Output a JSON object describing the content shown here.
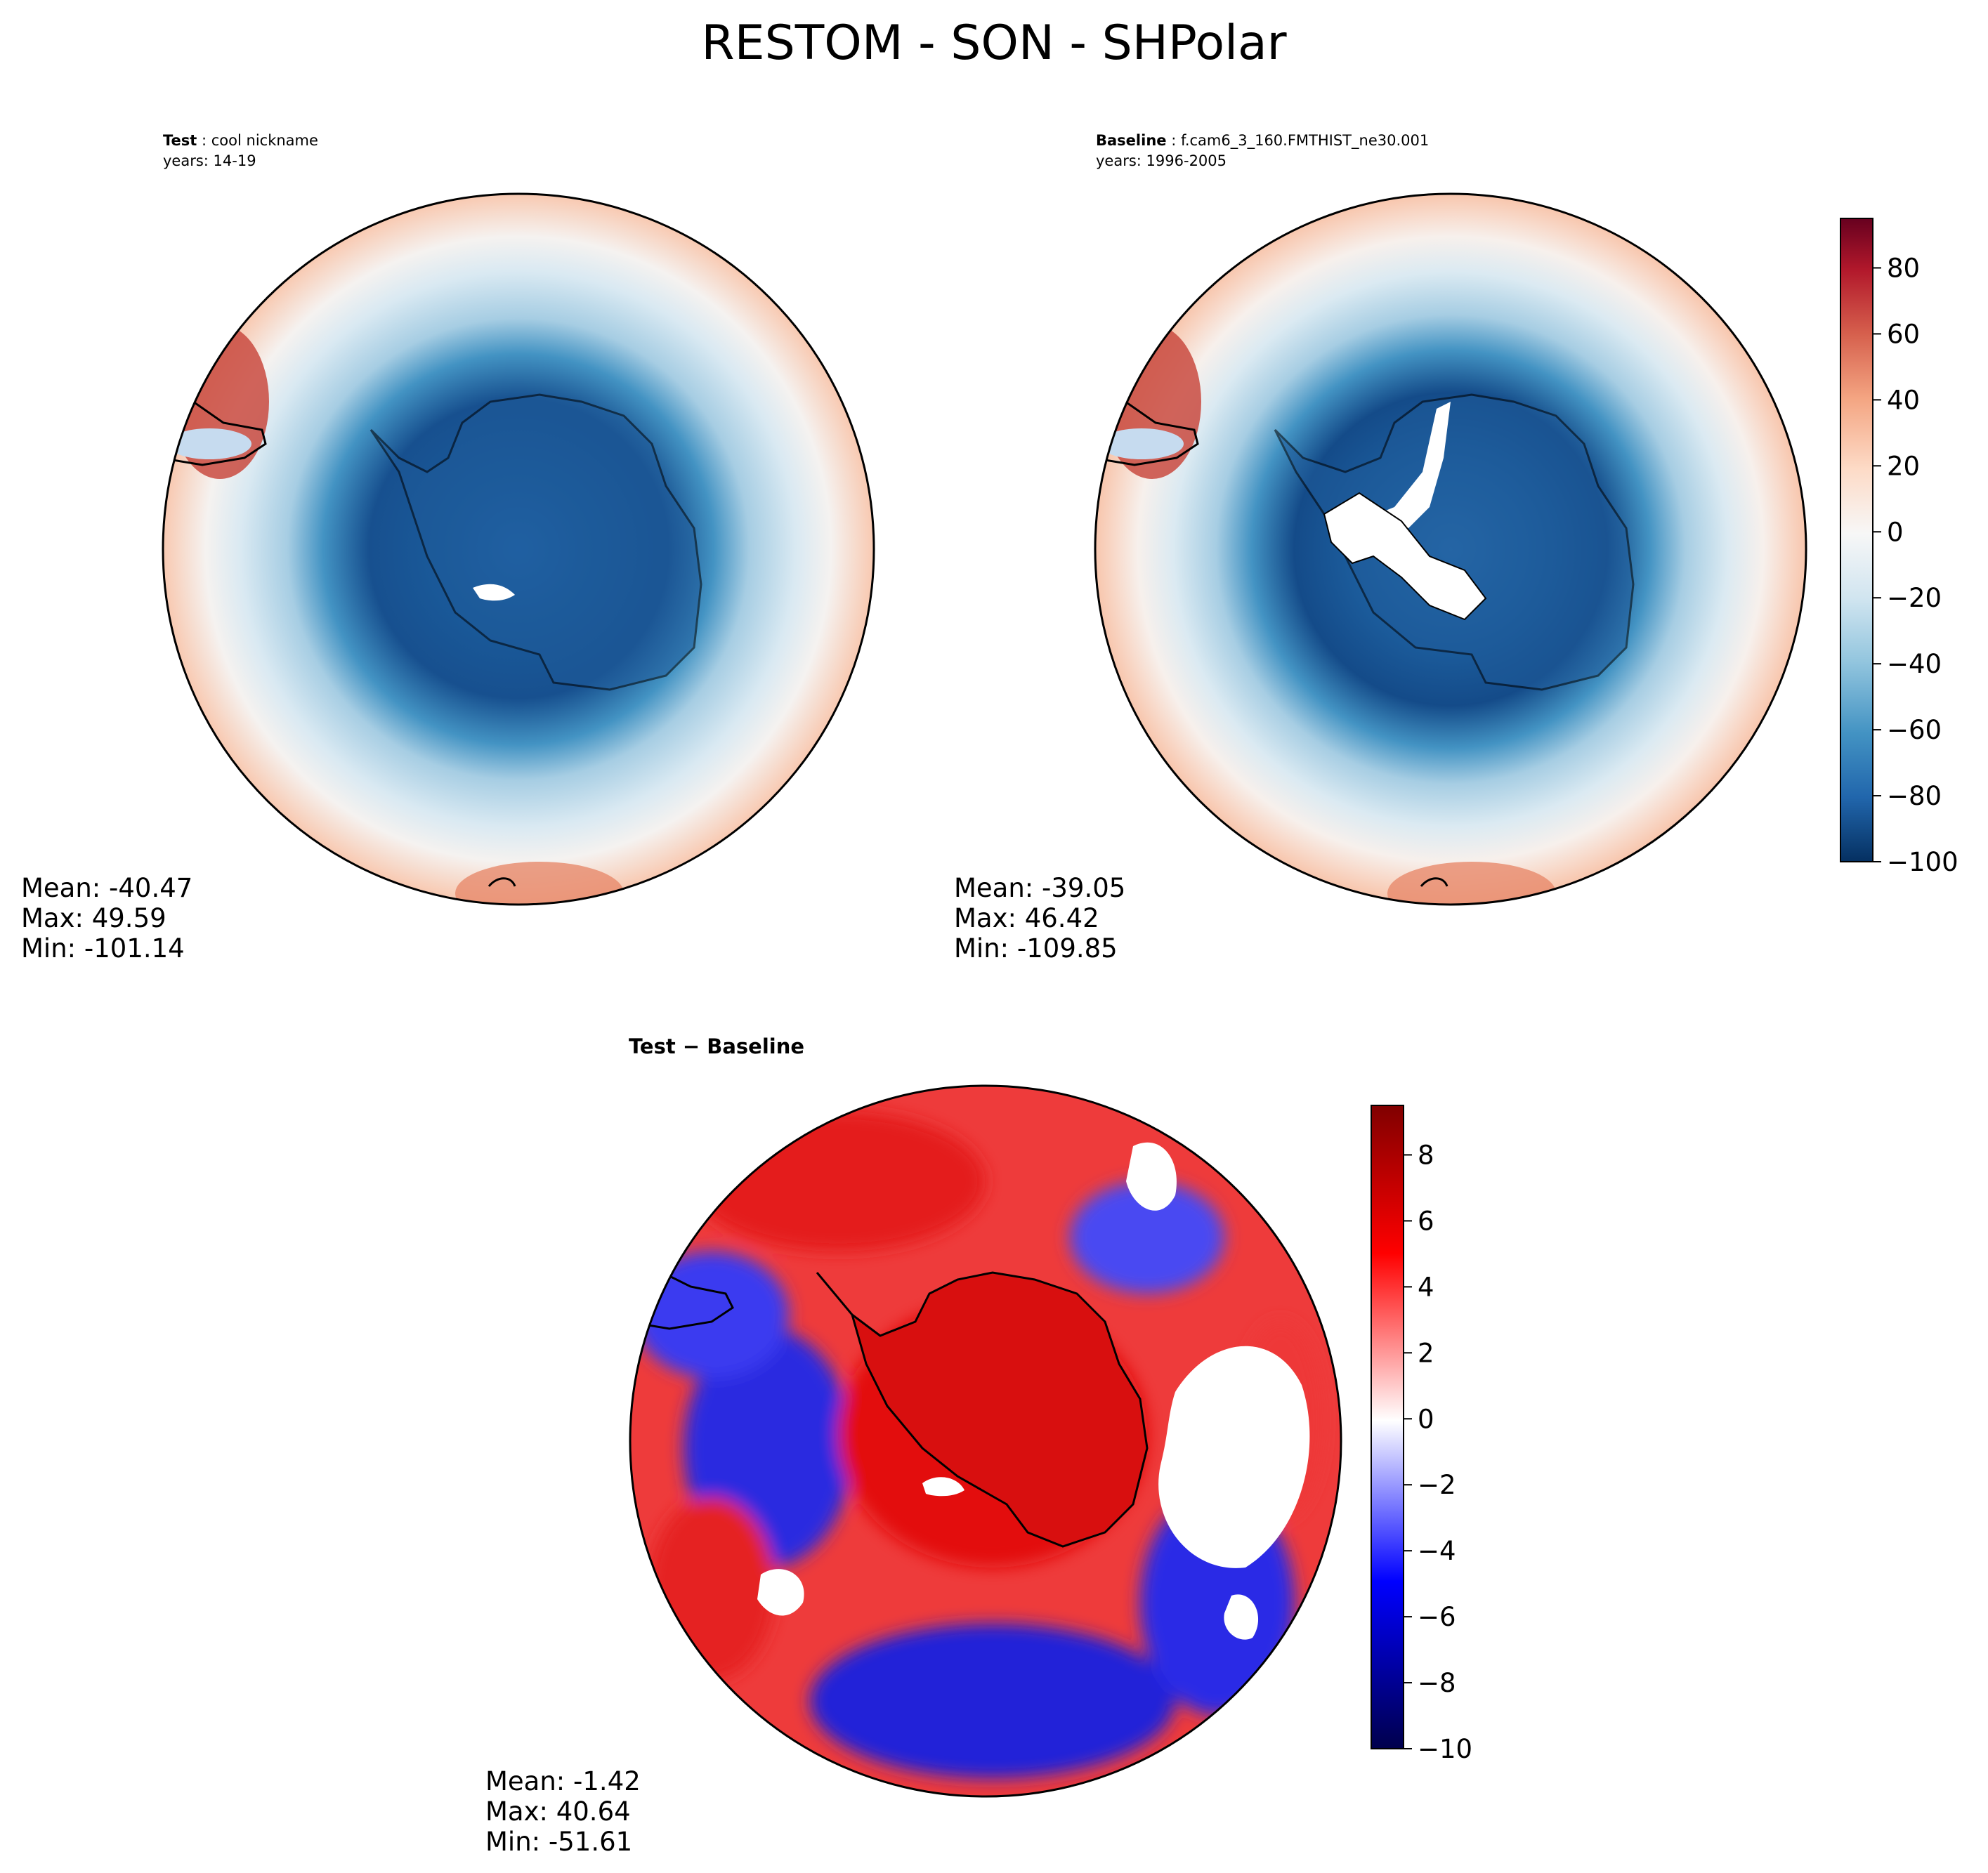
{
  "figure_title": "RESTOM - SON - SHPolar",
  "panels": {
    "test": {
      "label": "Test",
      "name": "cool nickname",
      "years": "years: 14-19",
      "stats": {
        "mean": "Mean: -40.47",
        "max": "Max: 49.59",
        "min": "Min: -101.14"
      }
    },
    "baseline": {
      "label": "Baseline",
      "name": "f.cam6_3_160.FMTHIST_ne30.001",
      "years": "years: 1996-2005",
      "stats": {
        "mean": "Mean: -39.05",
        "max": "Max: 46.42",
        "min": "Min: -109.85"
      }
    },
    "diff": {
      "title": "Test − Baseline",
      "stats": {
        "mean": "Mean: -1.42",
        "max": "Max: 40.64",
        "min": "Min: -51.61"
      }
    }
  },
  "chart_data": [
    {
      "type": "heatmap",
      "title": "Test: cool nickname",
      "projection": "south polar stereographic",
      "mean": -40.47,
      "max": 49.59,
      "min": -101.14,
      "colormap": "RdBu_r"
    },
    {
      "type": "heatmap",
      "title": "Baseline: f.cam6_3_160.FMTHIST_ne30.001",
      "projection": "south polar stereographic",
      "mean": -39.05,
      "max": 46.42,
      "min": -109.85,
      "colormap": "RdBu_r",
      "colorbar": {
        "range": [
          -100,
          95
        ],
        "ticks": [
          -100,
          -80,
          -60,
          -40,
          -20,
          0,
          20,
          40,
          60,
          80
        ],
        "tick_labels": [
          "−100",
          "−80",
          "−60",
          "−40",
          "−20",
          "0",
          "20",
          "40",
          "60",
          "80"
        ]
      }
    },
    {
      "type": "heatmap",
      "title": "Test − Baseline",
      "projection": "south polar stereographic",
      "mean": -1.42,
      "max": 40.64,
      "min": -51.61,
      "colormap": "seismic",
      "colorbar": {
        "range": [
          -10,
          9.5
        ],
        "ticks": [
          -10,
          -8,
          -6,
          -4,
          -2,
          0,
          2,
          4,
          6,
          8
        ],
        "tick_labels": [
          "−10",
          "−8",
          "−6",
          "−4",
          "−2",
          "0",
          "2",
          "4",
          "6",
          "8"
        ]
      }
    }
  ],
  "colors": {
    "rdbu": [
      "#053061",
      "#2166ac",
      "#4393c3",
      "#92c5de",
      "#d1e5f0",
      "#f7f7f7",
      "#fddbc7",
      "#f4a582",
      "#d6604d",
      "#b2182b",
      "#67001f"
    ],
    "seismic": [
      "#00004c",
      "#0000ff",
      "#ffffff",
      "#ff0000",
      "#800000"
    ]
  }
}
